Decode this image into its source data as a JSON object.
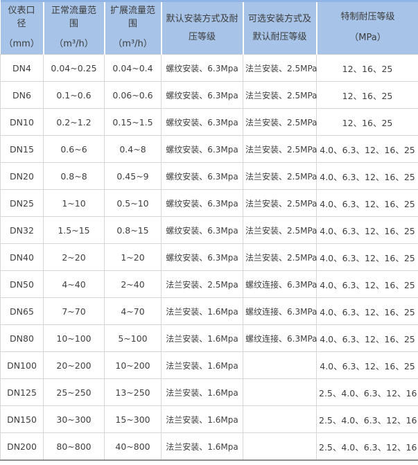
{
  "meta": {
    "description_label": "流量计规格参数表",
    "accent_color": "#a7c4e8",
    "header_top_border_color": "#8fb3e3",
    "grid_color": "#d6d6d6",
    "text_color": "#3e3e3e"
  },
  "table": {
    "column_keys": [
      "diameter",
      "normal-flow-range",
      "extended-flow-range",
      "default-installation",
      "optional-installation",
      "special-pressure-rating"
    ],
    "headers": [
      {
        "lines": [
          "仪表口径",
          "（mm）"
        ]
      },
      {
        "lines": [
          "正常流量范围",
          "（m³/h）"
        ]
      },
      {
        "lines": [
          "扩展流量范围",
          "（m³/h）"
        ]
      },
      {
        "lines": [
          "默认安装方式及耐压等级"
        ]
      },
      {
        "lines": [
          "可选安装方式及默认耐压等级"
        ]
      },
      {
        "lines": [
          "特制耐压等级",
          "（MPa）"
        ]
      }
    ],
    "rows": [
      [
        "DN4",
        "0.04~0.25",
        "0.04~0.4",
        "螺纹安装、6.3Mpa",
        "法兰安装、2.5MPa",
        "12、16、25"
      ],
      [
        "DN6",
        "0.1~0.6",
        "0.06~0.6",
        "螺纹安装、6.3Mpa",
        "法兰安装、2.5MPa",
        "12、16、25"
      ],
      [
        "DN10",
        "0.2~1.2",
        "0.15~1.5",
        "螺纹安装、6.3Mpa",
        "法兰安装、2.5MPa",
        "12、16、25"
      ],
      [
        "DN15",
        "0.6~6",
        "0.4~8",
        "螺纹安装、6.3Mpa",
        "法兰安装、2.5MPa",
        "4.0、6.3、12、16、25"
      ],
      [
        "DN20",
        "0.8~8",
        "0.45~9",
        "螺纹安装、6.3Mpa",
        "法兰安装、2.5MPa",
        "4.0、6.3、12、16、25"
      ],
      [
        "DN25",
        "1~10",
        "0.5~10",
        "螺纹安装、6.3Mpa",
        "法兰安装、2.5MPa",
        "4.0、6.3、12、16、25"
      ],
      [
        "DN32",
        "1.5~15",
        "0.8~15",
        "螺纹安装、6.3Mpa",
        "法兰安装、2.5MPa",
        "4.0、6.3、12、16、25"
      ],
      [
        "DN40",
        "2~20",
        "1~20",
        "螺纹安装、6.3Mpa",
        "法兰安装、2.5MPa",
        "4.0、6.3、12、16、25"
      ],
      [
        "DN50",
        "4~40",
        "2~40",
        "法兰安装、2.5Mpa",
        "螺纹连接、6.3MPa",
        "4.0、6.3、12、16、25"
      ],
      [
        "DN65",
        "7~70",
        "4~70",
        "法兰安装、1.6Mpa",
        "螺纹连接、6.3MPa",
        "4.0、6.3、12、16、25"
      ],
      [
        "DN80",
        "10~100",
        "5~100",
        "法兰安装、1.6Mpa",
        "螺纹连接、6.3MPa",
        "4.0、6.3、12、16、25"
      ],
      [
        "DN100",
        "20~200",
        "10~200",
        "法兰安装、1.6Mpa",
        "",
        "4.0、6.3、12、16、25"
      ],
      [
        "DN125",
        "25~250",
        "13~250",
        "法兰安装、1.6Mpa",
        "",
        "2.5、4.0、6.3、12、16"
      ],
      [
        "DN150",
        "30~300",
        "15~300",
        "法兰安装、1.6Mpa",
        "",
        "2.5、4.0、6.3、12、16"
      ],
      [
        "DN200",
        "80~800",
        "40~800",
        "法兰安装、1.6Mpa",
        "",
        "2.5、4.0、6.3、12、16"
      ]
    ]
  }
}
